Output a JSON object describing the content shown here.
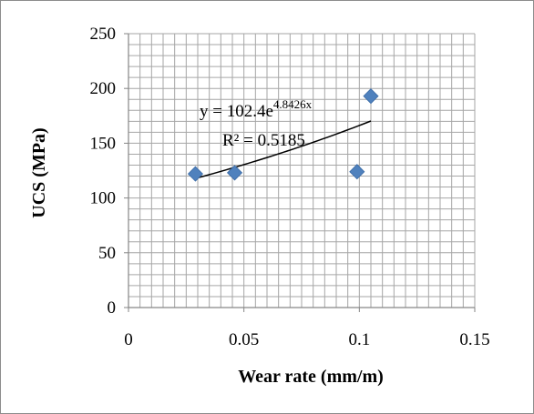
{
  "chart_data": {
    "type": "scatter",
    "xlabel": "Wear rate (mm/m)",
    "ylabel": "UCS (MPa)",
    "xlim": [
      0,
      0.15
    ],
    "ylim": [
      0,
      250
    ],
    "x_ticks": [
      "0",
      "0.05",
      "0.1",
      "0.15"
    ],
    "y_ticks": [
      "0",
      "50",
      "100",
      "150",
      "200",
      "250"
    ],
    "x_tick_values": [
      0,
      0.05,
      0.1,
      0.15
    ],
    "y_tick_values": [
      0,
      50,
      100,
      150,
      200,
      250
    ],
    "grid": true,
    "marker": "diamond",
    "marker_color": "#4f81bd",
    "points": [
      {
        "x": 0.029,
        "y": 122
      },
      {
        "x": 0.046,
        "y": 123
      },
      {
        "x": 0.099,
        "y": 124
      },
      {
        "x": 0.105,
        "y": 193
      }
    ],
    "trendline": {
      "type": "exponential",
      "a": 102.4,
      "b": 4.8426,
      "x_range": [
        0.029,
        0.105
      ],
      "color": "#000000"
    },
    "annotations": {
      "equation_prefix": "y = 102.4e",
      "equation_exponent": "4.8426x",
      "r_squared": "R² = 0.5185"
    }
  }
}
